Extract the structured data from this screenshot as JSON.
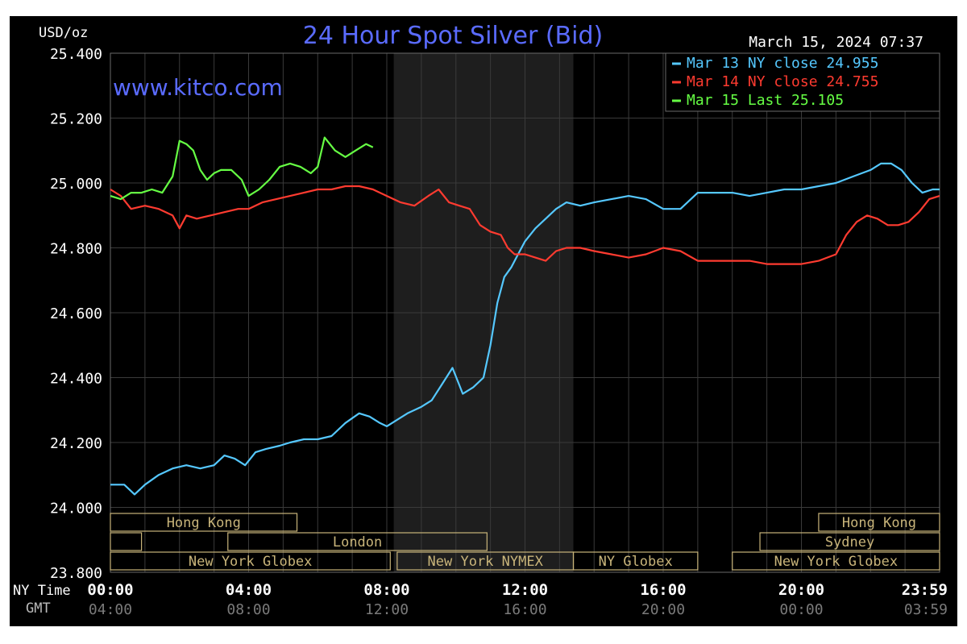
{
  "chart_data": {
    "type": "line",
    "title": "24 Hour Spot Silver (Bid)",
    "watermark": "www.kitco.com",
    "date_stamp": "March 15, 2024 07:37",
    "ylabel": "USD/oz",
    "ylim": [
      23.8,
      25.4
    ],
    "y_ticks": [
      "25.400",
      "25.200",
      "25.000",
      "24.800",
      "24.600",
      "24.400",
      "24.200",
      "24.000",
      "23.800"
    ],
    "y_tick_values": [
      25.4,
      25.2,
      25.0,
      24.8,
      24.6,
      24.4,
      24.2,
      24.0,
      23.8
    ],
    "x_row_labels": {
      "ny": "NY Time",
      "gmt": "GMT"
    },
    "x_ticks_ny": [
      "00:00",
      "04:00",
      "08:00",
      "12:00",
      "16:00",
      "20:00",
      "23:59"
    ],
    "x_ticks_gmt": [
      "04:00",
      "08:00",
      "12:00",
      "16:00",
      "20:00",
      "00:00",
      "03:59"
    ],
    "x_tick_hours": [
      0,
      4,
      8,
      12,
      16,
      20,
      23.983
    ],
    "xlim_hours": [
      0,
      24
    ],
    "shaded_hours": [
      8.2,
      13.4
    ],
    "grid": true,
    "legend_position": "top-right",
    "legend": [
      {
        "label": "Mar 13 NY close 24.955",
        "color": "#55c8ff"
      },
      {
        "label": "Mar 14 NY close 24.755",
        "color": "#ff3b30"
      },
      {
        "label": "Mar 15 Last 25.105",
        "color": "#66ff44"
      }
    ],
    "series": [
      {
        "name": "Mar 13 NY close 24.955",
        "color": "#55c8ff",
        "x": [
          0,
          0.4,
          0.7,
          1.0,
          1.4,
          1.8,
          2.2,
          2.6,
          3.0,
          3.3,
          3.6,
          3.9,
          4.2,
          4.5,
          4.9,
          5.2,
          5.6,
          6.0,
          6.4,
          6.8,
          7.2,
          7.5,
          7.8,
          8.0,
          8.3,
          8.6,
          9.0,
          9.3,
          9.6,
          9.9,
          10.2,
          10.5,
          10.8,
          11.0,
          11.2,
          11.4,
          11.6,
          11.8,
          12.0,
          12.3,
          12.6,
          12.9,
          13.2,
          13.6,
          14.0,
          14.5,
          15.0,
          15.5,
          16.0,
          16.5,
          17.0,
          17.5,
          18.0,
          18.5,
          19.0,
          19.5,
          20.0,
          20.5,
          21.0,
          21.5,
          22.0,
          22.3,
          22.6,
          22.9,
          23.2,
          23.5,
          23.8,
          24.0
        ],
        "y": [
          24.07,
          24.07,
          24.04,
          24.07,
          24.1,
          24.12,
          24.13,
          24.12,
          24.13,
          24.16,
          24.15,
          24.13,
          24.17,
          24.18,
          24.19,
          24.2,
          24.21,
          24.21,
          24.22,
          24.26,
          24.29,
          24.28,
          24.26,
          24.25,
          24.27,
          24.29,
          24.31,
          24.33,
          24.38,
          24.43,
          24.35,
          24.37,
          24.4,
          24.5,
          24.63,
          24.71,
          24.74,
          24.78,
          24.82,
          24.86,
          24.89,
          24.92,
          24.94,
          24.93,
          24.94,
          24.95,
          24.96,
          24.95,
          24.92,
          24.92,
          24.97,
          24.97,
          24.97,
          24.96,
          24.97,
          24.98,
          24.98,
          24.99,
          25.0,
          25.02,
          25.04,
          25.06,
          25.06,
          25.04,
          25.0,
          24.97,
          24.98,
          24.98
        ]
      },
      {
        "name": "Mar 14 NY close 24.755",
        "color": "#ff3b30",
        "x": [
          0,
          0.3,
          0.6,
          1.0,
          1.4,
          1.8,
          2.0,
          2.2,
          2.5,
          2.9,
          3.3,
          3.7,
          4.0,
          4.4,
          4.8,
          5.2,
          5.6,
          6.0,
          6.4,
          6.8,
          7.2,
          7.6,
          8.0,
          8.4,
          8.8,
          9.2,
          9.5,
          9.8,
          10.1,
          10.4,
          10.7,
          11.0,
          11.3,
          11.5,
          11.7,
          12.0,
          12.3,
          12.6,
          12.9,
          13.2,
          13.6,
          14.0,
          14.5,
          15.0,
          15.5,
          16.0,
          16.5,
          17.0,
          17.5,
          18.0,
          18.5,
          19.0,
          19.5,
          20.0,
          20.5,
          21.0,
          21.3,
          21.6,
          21.9,
          22.2,
          22.5,
          22.8,
          23.1,
          23.4,
          23.7,
          24.0
        ],
        "y": [
          24.98,
          24.96,
          24.92,
          24.93,
          24.92,
          24.9,
          24.86,
          24.9,
          24.89,
          24.9,
          24.91,
          24.92,
          24.92,
          24.94,
          24.95,
          24.96,
          24.97,
          24.98,
          24.98,
          24.99,
          24.99,
          24.98,
          24.96,
          24.94,
          24.93,
          24.96,
          24.98,
          24.94,
          24.93,
          24.92,
          24.87,
          24.85,
          24.84,
          24.8,
          24.78,
          24.78,
          24.77,
          24.76,
          24.79,
          24.8,
          24.8,
          24.79,
          24.78,
          24.77,
          24.78,
          24.8,
          24.79,
          24.76,
          24.76,
          24.76,
          24.76,
          24.75,
          24.75,
          24.75,
          24.76,
          24.78,
          24.84,
          24.88,
          24.9,
          24.89,
          24.87,
          24.87,
          24.88,
          24.91,
          24.95,
          24.96
        ]
      },
      {
        "name": "Mar 15 Last 25.105",
        "color": "#66ff44",
        "x": [
          0,
          0.3,
          0.6,
          0.9,
          1.2,
          1.5,
          1.8,
          2.0,
          2.2,
          2.4,
          2.6,
          2.8,
          3.0,
          3.2,
          3.5,
          3.8,
          4.0,
          4.3,
          4.6,
          4.9,
          5.2,
          5.5,
          5.8,
          6.0,
          6.2,
          6.5,
          6.8,
          7.1,
          7.4,
          7.6
        ],
        "y": [
          24.96,
          24.95,
          24.97,
          24.97,
          24.98,
          24.97,
          25.02,
          25.13,
          25.12,
          25.1,
          25.04,
          25.01,
          25.03,
          25.04,
          25.04,
          25.01,
          24.96,
          24.98,
          25.01,
          25.05,
          25.06,
          25.05,
          25.03,
          25.05,
          25.14,
          25.1,
          25.08,
          25.1,
          25.12,
          25.11
        ]
      }
    ],
    "sessions": [
      {
        "label": "Hong Kong",
        "row": 0,
        "start": 0.0,
        "end": 5.4
      },
      {
        "label": "Hong Kong",
        "row": 0,
        "start": 20.5,
        "end": 24.0
      },
      {
        "label": "",
        "row": 1,
        "start": 0.0,
        "end": 0.9
      },
      {
        "label": "London",
        "row": 1,
        "start": 3.4,
        "end": 10.9
      },
      {
        "label": "Sydney",
        "row": 1,
        "start": 18.8,
        "end": 24.0
      },
      {
        "label": "New York Globex",
        "row": 2,
        "start": 0.0,
        "end": 8.1
      },
      {
        "label": "New York NYMEX",
        "row": 2,
        "start": 8.3,
        "end": 13.4
      },
      {
        "label": "NY Globex",
        "row": 2,
        "start": 13.4,
        "end": 17.0
      },
      {
        "label": "New York Globex",
        "row": 2,
        "start": 18.0,
        "end": 24.0
      }
    ]
  }
}
